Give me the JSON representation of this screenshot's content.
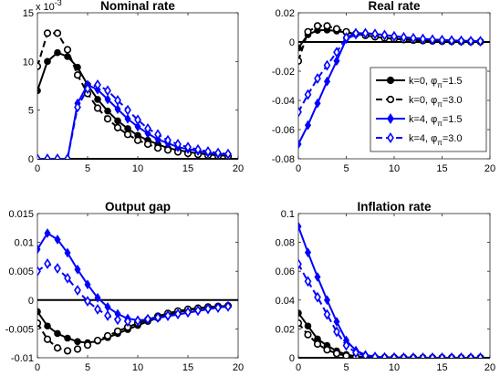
{
  "chart_data": [
    {
      "type": "line",
      "title": "Nominal rate",
      "xlabel": "",
      "ylabel": "",
      "scale_label": "x 10",
      "scale_exponent": "-3",
      "x": [
        0,
        1,
        2,
        3,
        4,
        5,
        6,
        7,
        8,
        9,
        10,
        11,
        12,
        13,
        14,
        15,
        16,
        17,
        18,
        19
      ],
      "xlim": [
        0,
        20
      ],
      "ylim": [
        0,
        15
      ],
      "xticks": [
        "0",
        "5",
        "10",
        "15",
        "20"
      ],
      "yticks": [
        "0",
        "5",
        "10",
        "15"
      ],
      "reference_line": 0,
      "series": [
        {
          "values": [
            7.0,
            10.0,
            10.9,
            10.5,
            9.4,
            7.6,
            6.1,
            4.9,
            3.9,
            3.1,
            2.4,
            1.9,
            1.5,
            1.1,
            0.9,
            0.7,
            0.55,
            0.45,
            0.35,
            0.3
          ]
        },
        {
          "values": [
            9.5,
            12.9,
            12.9,
            11.2,
            8.6,
            6.7,
            5.2,
            4.1,
            3.2,
            2.5,
            1.9,
            1.5,
            1.1,
            0.9,
            0.7,
            0.55,
            0.45,
            0.35,
            0.3,
            0.25
          ]
        },
        {
          "values": [
            0,
            0,
            0,
            0,
            5.7,
            7.6,
            7.1,
            6.1,
            5.1,
            4.1,
            3.3,
            2.6,
            2.0,
            1.6,
            1.2,
            1.0,
            0.8,
            0.6,
            0.5,
            0.45
          ]
        },
        {
          "values": [
            0,
            0,
            0,
            0,
            5.3,
            7.2,
            7.6,
            7.0,
            6.0,
            5.0,
            4.0,
            3.1,
            2.5,
            1.9,
            1.5,
            1.2,
            0.95,
            0.75,
            0.6,
            0.5
          ]
        }
      ]
    },
    {
      "type": "line",
      "title": "Real rate",
      "xlabel": "",
      "ylabel": "",
      "x": [
        0,
        1,
        2,
        3,
        4,
        5,
        6,
        7,
        8,
        9,
        10,
        11,
        12,
        13,
        14,
        15,
        16,
        17,
        18,
        19
      ],
      "xlim": [
        0,
        20
      ],
      "ylim": [
        -0.08,
        0.02
      ],
      "xticks": [
        "0",
        "5",
        "10",
        "15",
        "20"
      ],
      "yticks": [
        "0.02",
        "0",
        "-0.02",
        "-0.04",
        "-0.06",
        "-0.08"
      ],
      "reference_line": 0,
      "series": [
        {
          "values": [
            -0.004,
            0.005,
            0.008,
            0.0082,
            0.0075,
            0.0065,
            0.0055,
            0.0045,
            0.0036,
            0.0028,
            0.0022,
            0.0017,
            0.0013,
            0.001,
            0.0008,
            0.0006,
            0.0005,
            0.0004,
            0.0003,
            0.0002
          ]
        },
        {
          "values": [
            -0.013,
            0.007,
            0.011,
            0.011,
            0.009,
            0.007,
            0.0055,
            0.0045,
            0.0035,
            0.0027,
            0.0021,
            0.0016,
            0.0012,
            0.0009,
            0.0007,
            0.0005,
            0.0004,
            0.0003,
            0.0002,
            0.0002
          ]
        },
        {
          "values": [
            -0.07,
            -0.057,
            -0.042,
            -0.027,
            -0.013,
            0.002,
            0.005,
            0.006,
            0.0055,
            0.0048,
            0.004,
            0.0033,
            0.0027,
            0.0022,
            0.0017,
            0.0014,
            0.0011,
            0.0009,
            0.0007,
            0.0005
          ]
        },
        {
          "values": [
            -0.048,
            -0.036,
            -0.025,
            -0.016,
            -0.007,
            0.003,
            0.006,
            0.006,
            0.0055,
            0.0047,
            0.0039,
            0.0032,
            0.0026,
            0.0021,
            0.0016,
            0.0013,
            0.001,
            0.0008,
            0.0006,
            0.0005
          ]
        }
      ],
      "legend": {
        "placement": "right",
        "entries": [
          {
            "text": "k=0, φ",
            "sub": "π",
            "tail": "=1.5"
          },
          {
            "text": "k=0, φ",
            "sub": "π",
            "tail": "=3.0"
          },
          {
            "text": "k=4, φ",
            "sub": "π",
            "tail": "=1.5"
          },
          {
            "text": "k=4, φ",
            "sub": "π",
            "tail": "=3.0"
          }
        ]
      }
    },
    {
      "type": "line",
      "title": "Output gap",
      "xlabel": "",
      "ylabel": "",
      "x": [
        0,
        1,
        2,
        3,
        4,
        5,
        6,
        7,
        8,
        9,
        10,
        11,
        12,
        13,
        14,
        15,
        16,
        17,
        18,
        19
      ],
      "xlim": [
        0,
        20
      ],
      "ylim": [
        -0.01,
        0.015
      ],
      "xticks": [
        "0",
        "5",
        "10",
        "15",
        "20"
      ],
      "yticks": [
        "0.015",
        "0.01",
        "0.005",
        "0",
        "-0.005",
        "-0.01"
      ],
      "reference_line": 0,
      "series": [
        {
          "values": [
            -0.002,
            -0.0045,
            -0.0058,
            -0.0066,
            -0.0072,
            -0.0074,
            -0.0071,
            -0.0065,
            -0.0058,
            -0.0051,
            -0.0044,
            -0.0037,
            -0.0031,
            -0.0026,
            -0.0021,
            -0.0018,
            -0.0015,
            -0.0013,
            -0.0011,
            -0.001
          ]
        },
        {
          "values": [
            -0.004,
            -0.0068,
            -0.0083,
            -0.0088,
            -0.0085,
            -0.0078,
            -0.007,
            -0.0062,
            -0.0054,
            -0.0047,
            -0.004,
            -0.0034,
            -0.0028,
            -0.0023,
            -0.0019,
            -0.0016,
            -0.0014,
            -0.0012,
            -0.0011,
            -0.001
          ]
        },
        {
          "values": [
            0.0088,
            0.0116,
            0.0105,
            0.0082,
            0.0053,
            0.0027,
            0.0004,
            -0.0012,
            -0.0024,
            -0.0032,
            -0.0035,
            -0.0034,
            -0.0031,
            -0.0028,
            -0.0025,
            -0.0022,
            -0.0019,
            -0.0016,
            -0.0013,
            -0.0011
          ]
        },
        {
          "values": [
            0.005,
            0.0063,
            0.0055,
            0.0038,
            0.0017,
            -0.0002,
            -0.0016,
            -0.0027,
            -0.0034,
            -0.0037,
            -0.0036,
            -0.0033,
            -0.003,
            -0.0027,
            -0.0024,
            -0.0021,
            -0.0018,
            -0.0015,
            -0.0013,
            -0.0011
          ]
        }
      ]
    },
    {
      "type": "line",
      "title": "Inflation rate",
      "xlabel": "",
      "ylabel": "",
      "x": [
        0,
        1,
        2,
        3,
        4,
        5,
        6,
        7,
        8,
        9,
        10,
        11,
        12,
        13,
        14,
        15,
        16,
        17,
        18,
        19
      ],
      "xlim": [
        0,
        20
      ],
      "ylim": [
        0,
        0.1
      ],
      "xticks": [
        "0",
        "5",
        "10",
        "15",
        "20"
      ],
      "yticks": [
        "0.1",
        "0.08",
        "0.06",
        "0.04",
        "0.02",
        "0"
      ],
      "reference_line": 0,
      "series": [
        {
          "values": [
            0.031,
            0.022,
            0.013,
            0.0085,
            0.0047,
            0.0022,
            0.001,
            0.0005,
            0.0003,
            0.0002,
            0.0001,
            0.0001,
            0.0001,
            0,
            0,
            0,
            0,
            0,
            0,
            0
          ]
        },
        {
          "values": [
            0.024,
            0.016,
            0.0095,
            0.0055,
            0.0029,
            0.0013,
            0.0006,
            0.0003,
            0.0002,
            0.0001,
            0.0001,
            0,
            0,
            0,
            0,
            0,
            0,
            0,
            0,
            0
          ]
        },
        {
          "values": [
            0.091,
            0.073,
            0.056,
            0.04,
            0.025,
            0.012,
            0.005,
            0.002,
            0.0008,
            0.0003,
            0.0001,
            0.0001,
            0,
            0,
            0,
            0,
            0,
            0,
            0,
            0
          ]
        },
        {
          "values": [
            0.065,
            0.053,
            0.042,
            0.03,
            0.018,
            0.0085,
            0.0035,
            0.0014,
            0.0005,
            0.0002,
            0.0001,
            0,
            0,
            0,
            0,
            0,
            0,
            0,
            0,
            0
          ]
        }
      ]
    }
  ],
  "series_styles": [
    {
      "color": "#000000",
      "dash": "solid",
      "marker": "circle-filled"
    },
    {
      "color": "#000000",
      "dash": "dashed",
      "marker": "circle-hollow"
    },
    {
      "color": "#0000ff",
      "dash": "solid",
      "marker": "diamond-filled"
    },
    {
      "color": "#0000ff",
      "dash": "dashed",
      "marker": "diamond-hollow"
    }
  ]
}
